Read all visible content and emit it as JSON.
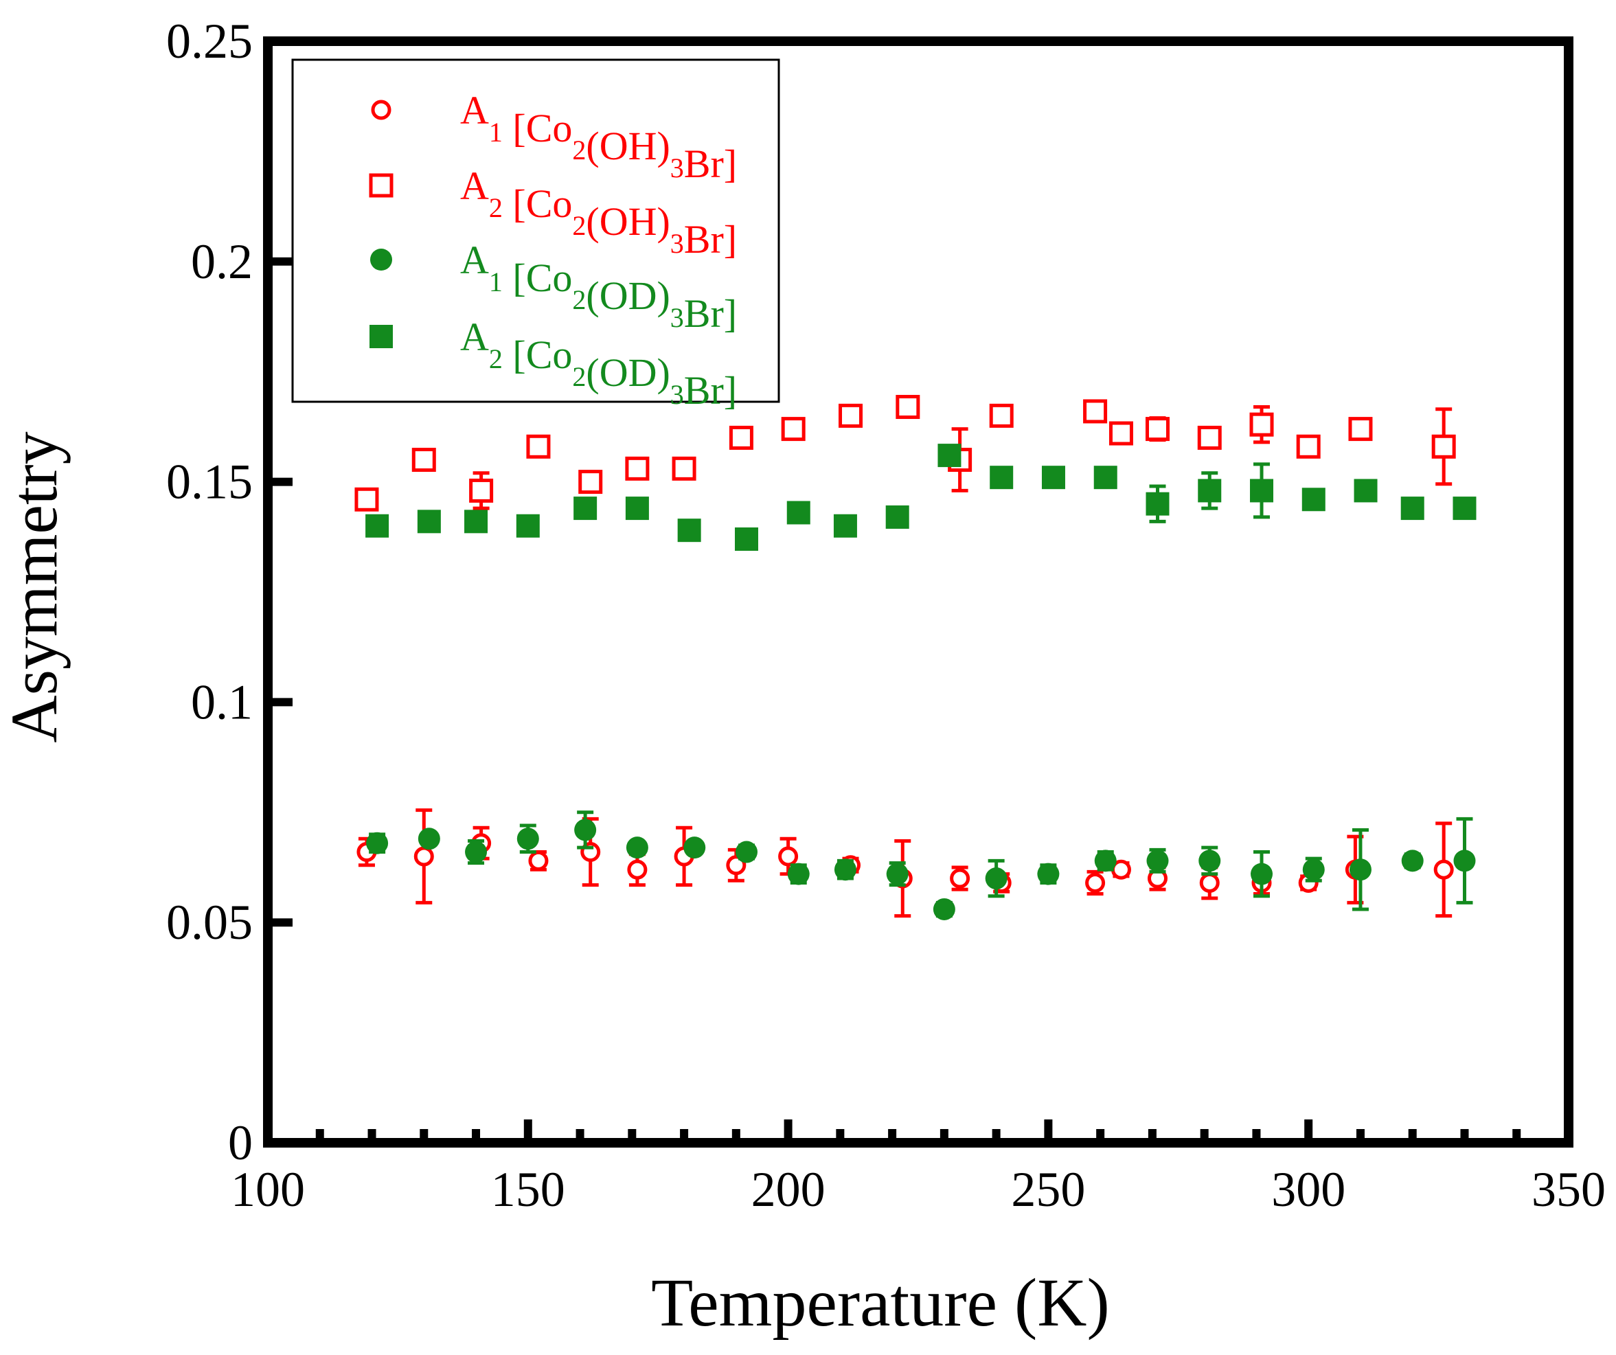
{
  "chart_data": {
    "type": "scatter",
    "xlabel": "Temperature (K)",
    "ylabel": "Asymmetry",
    "xlim": [
      100,
      350
    ],
    "ylim": [
      0,
      0.25
    ],
    "xticks": [
      "100",
      "150",
      "200",
      "250",
      "300",
      "350"
    ],
    "yticks": [
      "0",
      "0.05",
      "0.1",
      "0.15",
      "0.2",
      "0.25"
    ],
    "legend_position": "top-left",
    "series": [
      {
        "name": "A1 [Co2(OH)3Br]",
        "legend": {
          "base": "A",
          "sub1": "1",
          "mid": " [Co",
          "sub2": "2",
          "mid2": "(OH)",
          "sub3": "3",
          "tail": "Br]"
        },
        "marker": "open-circle",
        "color": "#ff0000",
        "points": [
          {
            "x": 119,
            "y": 0.066,
            "err": 0.003
          },
          {
            "x": 130,
            "y": 0.065,
            "err": 0.0105
          },
          {
            "x": 141,
            "y": 0.068,
            "err": 0.0035
          },
          {
            "x": 152,
            "y": 0.064,
            "err": 0.002
          },
          {
            "x": 162,
            "y": 0.066,
            "err": 0.0075
          },
          {
            "x": 171,
            "y": 0.062,
            "err": 0.0035
          },
          {
            "x": 180,
            "y": 0.065,
            "err": 0.0065
          },
          {
            "x": 190,
            "y": 0.063,
            "err": 0.0035
          },
          {
            "x": 200,
            "y": 0.065,
            "err": 0.004
          },
          {
            "x": 212,
            "y": 0.063,
            "err": 0.0015
          },
          {
            "x": 222,
            "y": 0.06,
            "err": 0.0085
          },
          {
            "x": 233,
            "y": 0.06,
            "err": 0.0025
          },
          {
            "x": 241,
            "y": 0.059,
            "err": 0.002
          },
          {
            "x": 259,
            "y": 0.059,
            "err": 0.0025
          },
          {
            "x": 264,
            "y": 0.062,
            "err": 0.0015
          },
          {
            "x": 271,
            "y": 0.06,
            "err": 0.0025
          },
          {
            "x": 281,
            "y": 0.059,
            "err": 0.0035
          },
          {
            "x": 291,
            "y": 0.059,
            "err": 0.0025
          },
          {
            "x": 300,
            "y": 0.059,
            "err": 0.0015
          },
          {
            "x": 309,
            "y": 0.062,
            "err": 0.0075
          },
          {
            "x": 326,
            "y": 0.062,
            "err": 0.0105
          }
        ]
      },
      {
        "name": "A2 [Co2(OH)3Br]",
        "legend": {
          "base": "A",
          "sub1": "2",
          "mid": " [Co",
          "sub2": "2",
          "mid2": "(OH)",
          "sub3": "3",
          "tail": "Br]"
        },
        "marker": "open-square",
        "color": "#ff0000",
        "points": [
          {
            "x": 119,
            "y": 0.146,
            "err": 0.002
          },
          {
            "x": 130,
            "y": 0.155,
            "err": 0
          },
          {
            "x": 141,
            "y": 0.148,
            "err": 0.004
          },
          {
            "x": 152,
            "y": 0.158,
            "err": 0
          },
          {
            "x": 162,
            "y": 0.15,
            "err": 0
          },
          {
            "x": 171,
            "y": 0.153,
            "err": 0
          },
          {
            "x": 180,
            "y": 0.153,
            "err": 0
          },
          {
            "x": 191,
            "y": 0.16,
            "err": 0
          },
          {
            "x": 201,
            "y": 0.162,
            "err": 0
          },
          {
            "x": 212,
            "y": 0.165,
            "err": 0
          },
          {
            "x": 223,
            "y": 0.167,
            "err": 0.0015
          },
          {
            "x": 233,
            "y": 0.155,
            "err": 0.007
          },
          {
            "x": 241,
            "y": 0.165,
            "err": 0
          },
          {
            "x": 259,
            "y": 0.166,
            "err": 0
          },
          {
            "x": 264,
            "y": 0.161,
            "err": 0
          },
          {
            "x": 271,
            "y": 0.162,
            "err": 0.0025
          },
          {
            "x": 281,
            "y": 0.16,
            "err": 0
          },
          {
            "x": 291,
            "y": 0.163,
            "err": 0.004
          },
          {
            "x": 300,
            "y": 0.158,
            "err": 0
          },
          {
            "x": 310,
            "y": 0.162,
            "err": 0
          },
          {
            "x": 326,
            "y": 0.158,
            "err": 0.0085
          }
        ]
      },
      {
        "name": "A1 [Co2(OD)3Br]",
        "legend": {
          "base": "A",
          "sub1": "1",
          "mid": " [Co",
          "sub2": "2",
          "mid2": "(OD)",
          "sub3": "3",
          "tail": "Br]"
        },
        "marker": "filled-circle",
        "color": "#138a1e",
        "points": [
          {
            "x": 121,
            "y": 0.068,
            "err": 0.002
          },
          {
            "x": 131,
            "y": 0.069,
            "err": 0
          },
          {
            "x": 140,
            "y": 0.066,
            "err": 0.0025
          },
          {
            "x": 150,
            "y": 0.069,
            "err": 0.003
          },
          {
            "x": 161,
            "y": 0.071,
            "err": 0.004
          },
          {
            "x": 171,
            "y": 0.067,
            "err": 0
          },
          {
            "x": 182,
            "y": 0.067,
            "err": 0
          },
          {
            "x": 192,
            "y": 0.066,
            "err": 0.0015
          },
          {
            "x": 202,
            "y": 0.061,
            "err": 0.002
          },
          {
            "x": 211,
            "y": 0.062,
            "err": 0.002
          },
          {
            "x": 221,
            "y": 0.061,
            "err": 0.0025
          },
          {
            "x": 230,
            "y": 0.053,
            "err": 0.0015
          },
          {
            "x": 240,
            "y": 0.06,
            "err": 0.004
          },
          {
            "x": 250,
            "y": 0.061,
            "err": 0.002
          },
          {
            "x": 261,
            "y": 0.064,
            "err": 0.002
          },
          {
            "x": 271,
            "y": 0.064,
            "err": 0.0025
          },
          {
            "x": 281,
            "y": 0.064,
            "err": 0.003
          },
          {
            "x": 291,
            "y": 0.061,
            "err": 0.005
          },
          {
            "x": 301,
            "y": 0.062,
            "err": 0.0025
          },
          {
            "x": 310,
            "y": 0.062,
            "err": 0.009
          },
          {
            "x": 320,
            "y": 0.064,
            "err": 0.0015
          },
          {
            "x": 330,
            "y": 0.064,
            "err": 0.0095
          }
        ]
      },
      {
        "name": "A2 [Co2(OD)3Br]",
        "legend": {
          "base": "A",
          "sub1": "2",
          "mid": " [Co",
          "sub2": "2",
          "mid2": "(OD)",
          "sub3": "3",
          "tail": "Br]"
        },
        "marker": "filled-square",
        "color": "#138a1e",
        "points": [
          {
            "x": 121,
            "y": 0.14,
            "err": 0.002
          },
          {
            "x": 131,
            "y": 0.141,
            "err": 0.002
          },
          {
            "x": 140,
            "y": 0.141,
            "err": 0
          },
          {
            "x": 150,
            "y": 0.14,
            "err": 0
          },
          {
            "x": 161,
            "y": 0.144,
            "err": 0
          },
          {
            "x": 171,
            "y": 0.144,
            "err": 0
          },
          {
            "x": 181,
            "y": 0.139,
            "err": 0
          },
          {
            "x": 192,
            "y": 0.137,
            "err": 0.002
          },
          {
            "x": 202,
            "y": 0.143,
            "err": 0.002
          },
          {
            "x": 211,
            "y": 0.14,
            "err": 0.002
          },
          {
            "x": 221,
            "y": 0.142,
            "err": 0.002
          },
          {
            "x": 231,
            "y": 0.156,
            "err": 0.002
          },
          {
            "x": 241,
            "y": 0.151,
            "err": 0
          },
          {
            "x": 251,
            "y": 0.151,
            "err": 0.002
          },
          {
            "x": 261,
            "y": 0.151,
            "err": 0.002
          },
          {
            "x": 271,
            "y": 0.145,
            "err": 0.004
          },
          {
            "x": 281,
            "y": 0.148,
            "err": 0.004
          },
          {
            "x": 291,
            "y": 0.148,
            "err": 0.006
          },
          {
            "x": 301,
            "y": 0.146,
            "err": 0
          },
          {
            "x": 311,
            "y": 0.148,
            "err": 0
          },
          {
            "x": 320,
            "y": 0.144,
            "err": 0
          },
          {
            "x": 330,
            "y": 0.144,
            "err": 0
          }
        ]
      }
    ]
  }
}
